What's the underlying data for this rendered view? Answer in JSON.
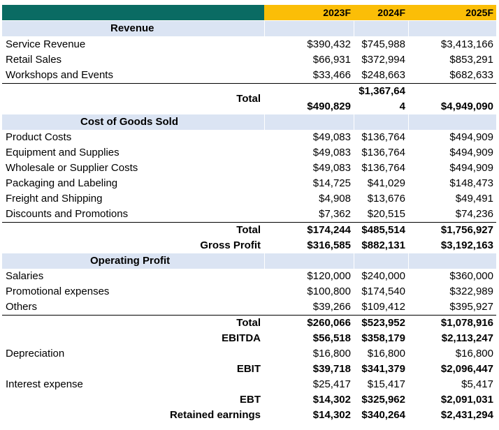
{
  "columns": [
    "2023F",
    "2024F",
    "2025F"
  ],
  "colors": {
    "header_left": "#0a6b63",
    "header_right": "#fbbe07",
    "section_band": "#dbe4f3"
  },
  "sections": {
    "revenue": "Revenue",
    "cogs": "Cost of Goods Sold",
    "operating": "Operating Profit"
  },
  "revenue_rows": [
    {
      "label": "Service Revenue",
      "v2023": "$390,432",
      "v2024": "$745,988",
      "v2025": "$3,413,166"
    },
    {
      "label": "Retail Sales",
      "v2023": "$66,931",
      "v2024": "$372,994",
      "v2025": "$853,291"
    },
    {
      "label": "Workshops and Events",
      "v2023": "$33,466",
      "v2024": "$248,663",
      "v2025": "$682,633"
    }
  ],
  "revenue_total": {
    "label": "Total",
    "v2023": "$490,829",
    "v2024_line1": "$1,367,64",
    "v2024_line2": "4",
    "v2025": "$4,949,090"
  },
  "cogs_rows": [
    {
      "label": "Product Costs",
      "v2023": "$49,083",
      "v2024": "$136,764",
      "v2025": "$494,909"
    },
    {
      "label": "Equipment and Supplies",
      "v2023": "$49,083",
      "v2024": "$136,764",
      "v2025": "$494,909"
    },
    {
      "label": "Wholesale or Supplier Costs",
      "v2023": "$49,083",
      "v2024": "$136,764",
      "v2025": "$494,909"
    },
    {
      "label": "Packaging and Labeling",
      "v2023": "$14,725",
      "v2024": "$41,029",
      "v2025": "$148,473"
    },
    {
      "label": "Freight and Shipping",
      "v2023": "$4,908",
      "v2024": "$13,676",
      "v2025": "$49,491"
    },
    {
      "label": "Discounts and Promotions",
      "v2023": "$7,362",
      "v2024": "$20,515",
      "v2025": "$74,236"
    }
  ],
  "cogs_total": {
    "label": "Total",
    "v2023": "$174,244",
    "v2024": "$485,514",
    "v2025": "$1,756,927"
  },
  "gross_profit": {
    "label": "Gross Profit",
    "v2023": "$316,585",
    "v2024": "$882,131",
    "v2025": "$3,192,163"
  },
  "operating_rows": [
    {
      "label": "Salaries",
      "v2023": "$120,000",
      "v2024": "$240,000",
      "v2025": "$360,000"
    },
    {
      "label": "Promotional expenses",
      "v2023": "$100,800",
      "v2024": "$174,540",
      "v2025": "$322,989"
    },
    {
      "label": "Others",
      "v2023": "$39,266",
      "v2024": "$109,412",
      "v2025": "$395,927"
    }
  ],
  "operating_total": {
    "label": "Total",
    "v2023": "$260,066",
    "v2024": "$523,952",
    "v2025": "$1,078,916"
  },
  "ebitda": {
    "label": "EBITDA",
    "v2023": "$56,518",
    "v2024": "$358,179",
    "v2025": "$2,113,247"
  },
  "depreciation": {
    "label": "Depreciation",
    "v2023": "$16,800",
    "v2024": "$16,800",
    "v2025": "$16,800"
  },
  "ebit": {
    "label": "EBIT",
    "v2023": "$39,718",
    "v2024": "$341,379",
    "v2025": "$2,096,447"
  },
  "interest": {
    "label": "Interest expense",
    "v2023": "$25,417",
    "v2024": "$15,417",
    "v2025": "$5,417"
  },
  "ebt": {
    "label": "EBT",
    "v2023": "$14,302",
    "v2024": "$325,962",
    "v2025": "$2,091,031"
  },
  "retained": {
    "label": "Retained earnings",
    "v2023": "$14,302",
    "v2024": "$340,264",
    "v2025": "$2,431,294"
  }
}
